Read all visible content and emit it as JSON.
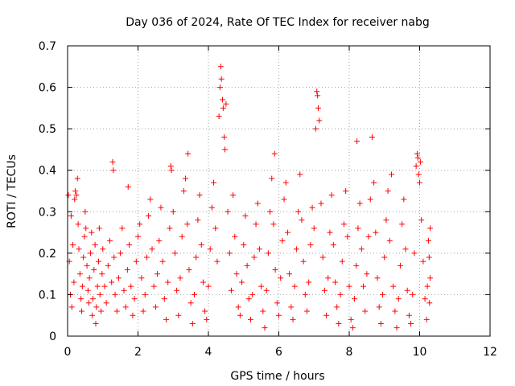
{
  "chart_data": {
    "type": "scatter",
    "title": "Day 036 of 2024, Rate Of TEC Index for receiver nabg",
    "xlabel": "GPS time / hours",
    "ylabel": "ROTI / TECUs",
    "xlim": [
      0,
      12
    ],
    "ylim": [
      0,
      0.7
    ],
    "x_ticks": [
      "0",
      "2",
      "4",
      "6",
      "8",
      "10",
      "12"
    ],
    "y_ticks": [
      "0",
      "0.1",
      "0.2",
      "0.3",
      "0.4",
      "0.5",
      "0.6",
      "0.7"
    ],
    "grid": true,
    "marker": "+",
    "series": [
      {
        "color": "#ff0000",
        "points": [
          [
            0.02,
            0.34
          ],
          [
            0.05,
            0.18
          ],
          [
            0.08,
            0.1
          ],
          [
            0.1,
            0.29
          ],
          [
            0.12,
            0.07
          ],
          [
            0.15,
            0.22
          ],
          [
            0.18,
            0.13
          ],
          [
            0.2,
            0.33
          ],
          [
            0.22,
            0.35
          ],
          [
            0.25,
            0.34
          ],
          [
            0.28,
            0.38
          ],
          [
            0.3,
            0.27
          ],
          [
            0.32,
            0.21
          ],
          [
            0.35,
            0.15
          ],
          [
            0.38,
            0.09
          ],
          [
            0.4,
            0.06
          ],
          [
            0.42,
            0.12
          ],
          [
            0.45,
            0.19
          ],
          [
            0.48,
            0.24
          ],
          [
            0.5,
            0.3
          ],
          [
            0.52,
            0.26
          ],
          [
            0.55,
            0.17
          ],
          [
            0.58,
            0.11
          ],
          [
            0.6,
            0.08
          ],
          [
            0.62,
            0.14
          ],
          [
            0.65,
            0.2
          ],
          [
            0.68,
            0.25
          ],
          [
            0.7,
            0.05
          ],
          [
            0.72,
            0.09
          ],
          [
            0.75,
            0.16
          ],
          [
            0.78,
            0.22
          ],
          [
            0.8,
            0.03
          ],
          [
            0.82,
            0.07
          ],
          [
            0.85,
            0.12
          ],
          [
            0.88,
            0.18
          ],
          [
            0.9,
            0.26
          ],
          [
            0.92,
            0.1
          ],
          [
            0.95,
            0.06
          ],
          [
            0.98,
            0.15
          ],
          [
            1.0,
            0.21
          ],
          [
            1.05,
            0.12
          ],
          [
            1.1,
            0.08
          ],
          [
            1.15,
            0.17
          ],
          [
            1.2,
            0.23
          ],
          [
            1.25,
            0.13
          ],
          [
            1.28,
            0.42
          ],
          [
            1.3,
            0.4
          ],
          [
            1.32,
            0.19
          ],
          [
            1.35,
            0.1
          ],
          [
            1.4,
            0.06
          ],
          [
            1.45,
            0.14
          ],
          [
            1.5,
            0.2
          ],
          [
            1.55,
            0.26
          ],
          [
            1.6,
            0.11
          ],
          [
            1.65,
            0.07
          ],
          [
            1.7,
            0.16
          ],
          [
            1.72,
            0.36
          ],
          [
            1.75,
            0.22
          ],
          [
            1.8,
            0.12
          ],
          [
            1.85,
            0.05
          ],
          [
            1.9,
            0.09
          ],
          [
            1.95,
            0.18
          ],
          [
            2.0,
            0.24
          ],
          [
            2.05,
            0.27
          ],
          [
            2.1,
            0.14
          ],
          [
            2.15,
            0.06
          ],
          [
            2.2,
            0.1
          ],
          [
            2.25,
            0.19
          ],
          [
            2.3,
            0.29
          ],
          [
            2.35,
            0.33
          ],
          [
            2.4,
            0.21
          ],
          [
            2.45,
            0.12
          ],
          [
            2.5,
            0.07
          ],
          [
            2.55,
            0.15
          ],
          [
            2.6,
            0.23
          ],
          [
            2.65,
            0.31
          ],
          [
            2.7,
            0.18
          ],
          [
            2.75,
            0.09
          ],
          [
            2.8,
            0.04
          ],
          [
            2.85,
            0.13
          ],
          [
            2.9,
            0.26
          ],
          [
            2.93,
            0.41
          ],
          [
            2.95,
            0.4
          ],
          [
            3.0,
            0.3
          ],
          [
            3.05,
            0.2
          ],
          [
            3.1,
            0.11
          ],
          [
            3.15,
            0.05
          ],
          [
            3.2,
            0.14
          ],
          [
            3.25,
            0.24
          ],
          [
            3.3,
            0.35
          ],
          [
            3.35,
            0.38
          ],
          [
            3.4,
            0.27
          ],
          [
            3.42,
            0.44
          ],
          [
            3.45,
            0.16
          ],
          [
            3.5,
            0.08
          ],
          [
            3.55,
            0.03
          ],
          [
            3.6,
            0.1
          ],
          [
            3.65,
            0.19
          ],
          [
            3.7,
            0.28
          ],
          [
            3.75,
            0.34
          ],
          [
            3.8,
            0.22
          ],
          [
            3.85,
            0.13
          ],
          [
            3.9,
            0.06
          ],
          [
            3.95,
            0.04
          ],
          [
            4.0,
            0.12
          ],
          [
            4.05,
            0.21
          ],
          [
            4.1,
            0.31
          ],
          [
            4.15,
            0.37
          ],
          [
            4.2,
            0.26
          ],
          [
            4.25,
            0.18
          ],
          [
            4.3,
            0.53
          ],
          [
            4.33,
            0.6
          ],
          [
            4.35,
            0.65
          ],
          [
            4.37,
            0.62
          ],
          [
            4.4,
            0.57
          ],
          [
            4.42,
            0.55
          ],
          [
            4.45,
            0.48
          ],
          [
            4.47,
            0.45
          ],
          [
            4.5,
            0.56
          ],
          [
            4.55,
            0.3
          ],
          [
            4.6,
            0.2
          ],
          [
            4.65,
            0.11
          ],
          [
            4.7,
            0.34
          ],
          [
            4.75,
            0.24
          ],
          [
            4.8,
            0.15
          ],
          [
            4.85,
            0.07
          ],
          [
            4.9,
            0.05
          ],
          [
            4.95,
            0.13
          ],
          [
            5.0,
            0.22
          ],
          [
            5.05,
            0.29
          ],
          [
            5.1,
            0.17
          ],
          [
            5.15,
            0.09
          ],
          [
            5.2,
            0.04
          ],
          [
            5.25,
            0.1
          ],
          [
            5.3,
            0.19
          ],
          [
            5.35,
            0.27
          ],
          [
            5.4,
            0.32
          ],
          [
            5.45,
            0.21
          ],
          [
            5.5,
            0.12
          ],
          [
            5.55,
            0.06
          ],
          [
            5.6,
            0.02
          ],
          [
            5.65,
            0.11
          ],
          [
            5.7,
            0.2
          ],
          [
            5.75,
            0.3
          ],
          [
            5.8,
            0.38
          ],
          [
            5.85,
            0.27
          ],
          [
            5.88,
            0.44
          ],
          [
            5.9,
            0.16
          ],
          [
            5.95,
            0.08
          ],
          [
            6.0,
            0.05
          ],
          [
            6.05,
            0.14
          ],
          [
            6.1,
            0.23
          ],
          [
            6.15,
            0.33
          ],
          [
            6.2,
            0.37
          ],
          [
            6.25,
            0.25
          ],
          [
            6.3,
            0.15
          ],
          [
            6.35,
            0.07
          ],
          [
            6.4,
            0.04
          ],
          [
            6.45,
            0.12
          ],
          [
            6.5,
            0.21
          ],
          [
            6.55,
            0.3
          ],
          [
            6.6,
            0.39
          ],
          [
            6.65,
            0.28
          ],
          [
            6.7,
            0.18
          ],
          [
            6.75,
            0.1
          ],
          [
            6.8,
            0.06
          ],
          [
            6.85,
            0.13
          ],
          [
            6.9,
            0.22
          ],
          [
            6.95,
            0.31
          ],
          [
            7.0,
            0.26
          ],
          [
            7.05,
            0.5
          ],
          [
            7.08,
            0.59
          ],
          [
            7.1,
            0.58
          ],
          [
            7.12,
            0.55
          ],
          [
            7.15,
            0.52
          ],
          [
            7.2,
            0.32
          ],
          [
            7.25,
            0.19
          ],
          [
            7.3,
            0.11
          ],
          [
            7.35,
            0.05
          ],
          [
            7.4,
            0.14
          ],
          [
            7.45,
            0.25
          ],
          [
            7.5,
            0.34
          ],
          [
            7.55,
            0.22
          ],
          [
            7.6,
            0.13
          ],
          [
            7.65,
            0.07
          ],
          [
            7.7,
            0.03
          ],
          [
            7.75,
            0.1
          ],
          [
            7.8,
            0.18
          ],
          [
            7.85,
            0.27
          ],
          [
            7.9,
            0.35
          ],
          [
            7.95,
            0.24
          ],
          [
            8.0,
            0.12
          ],
          [
            8.05,
            0.04
          ],
          [
            8.1,
            0.02
          ],
          [
            8.15,
            0.09
          ],
          [
            8.2,
            0.17
          ],
          [
            8.22,
            0.47
          ],
          [
            8.25,
            0.26
          ],
          [
            8.3,
            0.32
          ],
          [
            8.35,
            0.21
          ],
          [
            8.4,
            0.12
          ],
          [
            8.45,
            0.06
          ],
          [
            8.5,
            0.15
          ],
          [
            8.55,
            0.24
          ],
          [
            8.6,
            0.33
          ],
          [
            8.65,
            0.48
          ],
          [
            8.7,
            0.37
          ],
          [
            8.75,
            0.25
          ],
          [
            8.8,
            0.14
          ],
          [
            8.85,
            0.07
          ],
          [
            8.9,
            0.03
          ],
          [
            8.95,
            0.1
          ],
          [
            9.0,
            0.19
          ],
          [
            9.05,
            0.28
          ],
          [
            9.1,
            0.35
          ],
          [
            9.15,
            0.23
          ],
          [
            9.2,
            0.39
          ],
          [
            9.25,
            0.12
          ],
          [
            9.3,
            0.06
          ],
          [
            9.35,
            0.02
          ],
          [
            9.4,
            0.09
          ],
          [
            9.45,
            0.17
          ],
          [
            9.5,
            0.27
          ],
          [
            9.55,
            0.33
          ],
          [
            9.6,
            0.21
          ],
          [
            9.65,
            0.11
          ],
          [
            9.7,
            0.05
          ],
          [
            9.75,
            0.03
          ],
          [
            9.8,
            0.1
          ],
          [
            9.85,
            0.2
          ],
          [
            9.9,
            0.41
          ],
          [
            9.93,
            0.44
          ],
          [
            9.95,
            0.43
          ],
          [
            9.97,
            0.39
          ],
          [
            10.0,
            0.37
          ],
          [
            10.02,
            0.42
          ],
          [
            10.05,
            0.28
          ],
          [
            10.1,
            0.18
          ],
          [
            10.15,
            0.09
          ],
          [
            10.2,
            0.04
          ],
          [
            10.22,
            0.12
          ],
          [
            10.25,
            0.23
          ],
          [
            10.27,
            0.19
          ],
          [
            10.28,
            0.08
          ],
          [
            10.3,
            0.26
          ],
          [
            10.3,
            0.14
          ]
        ]
      }
    ]
  }
}
